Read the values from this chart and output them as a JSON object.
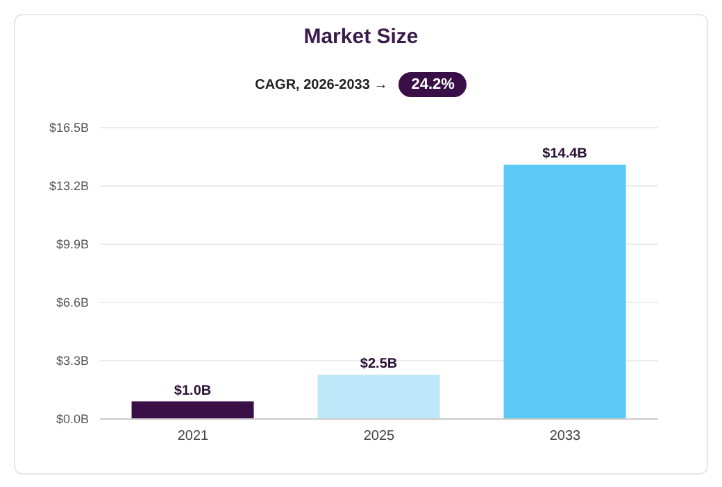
{
  "chart_data": {
    "type": "bar",
    "title": "Market Size",
    "subtitle": "CAGR, 2026-2033 →",
    "annotations": [
      "24.2%"
    ],
    "categories": [
      "2021",
      "2025",
      "2033"
    ],
    "values": [
      1.0,
      2.5,
      14.4
    ],
    "colors": [
      "#3a0f47",
      "#bde8fa",
      "#5bc9f8"
    ],
    "value_labels": [
      "$1.0B",
      "$2.5B",
      "$14.4B"
    ],
    "ylim": [
      0,
      16.5
    ],
    "yticks": [
      {
        "value": 0,
        "label": "$0.0B"
      },
      {
        "value": 3.3,
        "label": "$3.3B"
      },
      {
        "value": 6.6,
        "label": "$6.6B"
      },
      {
        "value": 9.9,
        "label": "$9.9B"
      },
      {
        "value": 13.2,
        "label": "$13.2B"
      },
      {
        "value": 16.5,
        "label": "$16.5B"
      }
    ],
    "grid": "y"
  }
}
